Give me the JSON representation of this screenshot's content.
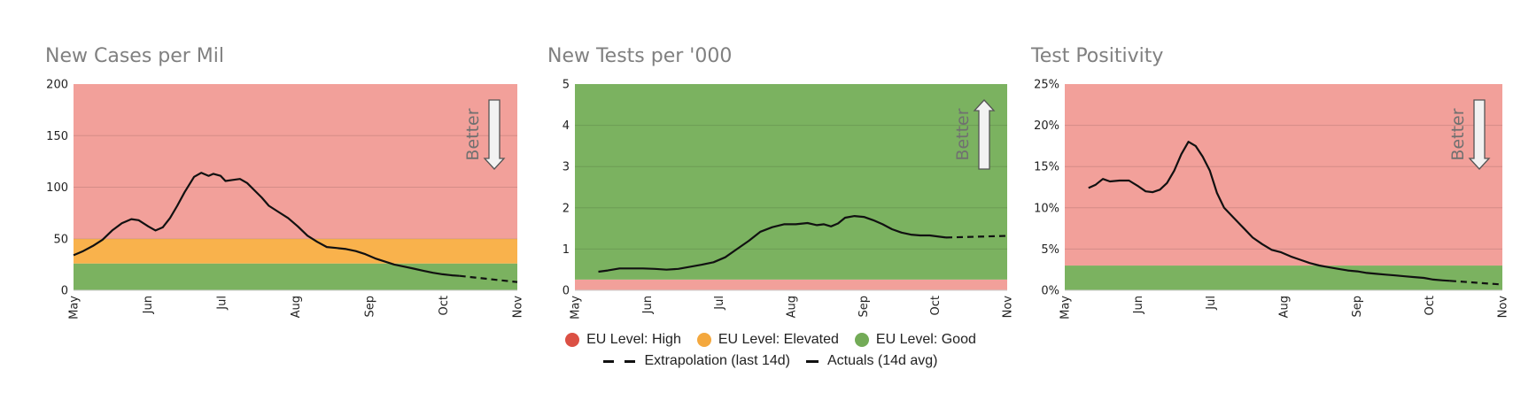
{
  "colors": {
    "high": "#f2a09a",
    "elevated": "#f9b24c",
    "good": "#7bb260",
    "line": "#111111",
    "legend_high": "#db5044",
    "legend_elevated": "#f4a83e",
    "legend_good": "#73ab57"
  },
  "legend": {
    "high": "EU Level: High",
    "elevated": "EU Level: Elevated",
    "good": "EU Level: Good",
    "extrapolation": "Extrapolation (last 14d)",
    "actuals": "Actuals (14d avg)"
  },
  "chart_data": [
    {
      "type": "line",
      "title": "New Cases per Mil",
      "better_label": "Better",
      "better_direction": "down",
      "x_ticks": [
        "May",
        "Jun",
        "Jul",
        "Aug",
        "Sep",
        "Oct",
        "Nov"
      ],
      "x_range": [
        "2020-05-01",
        "2020-11-01"
      ],
      "y_ticks": [
        "0",
        "50",
        "100",
        "150",
        "200"
      ],
      "ylim": [
        0,
        200
      ],
      "bands": [
        {
          "level": "good",
          "from": 0,
          "to": 26
        },
        {
          "level": "elevated",
          "from": 26,
          "to": 50
        },
        {
          "level": "high",
          "from": 50,
          "to": 200
        }
      ],
      "actuals": [
        [
          "2020-05-01",
          34
        ],
        [
          "2020-05-05",
          38
        ],
        [
          "2020-05-09",
          43
        ],
        [
          "2020-05-13",
          49
        ],
        [
          "2020-05-17",
          58
        ],
        [
          "2020-05-21",
          65
        ],
        [
          "2020-05-25",
          69
        ],
        [
          "2020-05-28",
          68
        ],
        [
          "2020-06-01",
          62
        ],
        [
          "2020-06-04",
          58
        ],
        [
          "2020-06-07",
          61
        ],
        [
          "2020-06-10",
          70
        ],
        [
          "2020-06-13",
          82
        ],
        [
          "2020-06-16",
          95
        ],
        [
          "2020-06-20",
          110
        ],
        [
          "2020-06-23",
          114
        ],
        [
          "2020-06-26",
          111
        ],
        [
          "2020-06-28",
          113
        ],
        [
          "2020-07-01",
          111
        ],
        [
          "2020-07-03",
          106
        ],
        [
          "2020-07-06",
          107
        ],
        [
          "2020-07-09",
          108
        ],
        [
          "2020-07-12",
          104
        ],
        [
          "2020-07-15",
          97
        ],
        [
          "2020-07-18",
          90
        ],
        [
          "2020-07-21",
          82
        ],
        [
          "2020-07-25",
          76
        ],
        [
          "2020-07-29",
          70
        ],
        [
          "2020-08-02",
          62
        ],
        [
          "2020-08-06",
          53
        ],
        [
          "2020-08-10",
          47
        ],
        [
          "2020-08-14",
          42
        ],
        [
          "2020-08-18",
          41
        ],
        [
          "2020-08-22",
          40
        ],
        [
          "2020-08-26",
          38
        ],
        [
          "2020-08-30",
          35
        ],
        [
          "2020-09-03",
          31
        ],
        [
          "2020-09-07",
          28
        ],
        [
          "2020-09-11",
          25
        ],
        [
          "2020-09-15",
          23
        ],
        [
          "2020-09-19",
          21
        ],
        [
          "2020-09-23",
          19
        ],
        [
          "2020-09-27",
          17
        ],
        [
          "2020-10-01",
          15.5
        ],
        [
          "2020-10-05",
          14.5
        ],
        [
          "2020-10-08",
          14
        ]
      ],
      "extrapolation": [
        [
          "2020-10-08",
          14
        ],
        [
          "2020-11-01",
          8
        ]
      ]
    },
    {
      "type": "line",
      "title": "New Tests per '000",
      "better_label": "Better",
      "better_direction": "up",
      "x_ticks": [
        "May",
        "Jun",
        "Jul",
        "Aug",
        "Sep",
        "Oct",
        "Nov"
      ],
      "x_range": [
        "2020-05-01",
        "2020-11-01"
      ],
      "y_ticks": [
        "0",
        "1",
        "2",
        "3",
        "4",
        "5"
      ],
      "ylim": [
        0,
        5
      ],
      "bands": [
        {
          "level": "high",
          "from": 0,
          "to": 0.26
        },
        {
          "level": "good",
          "from": 0.26,
          "to": 5
        }
      ],
      "actuals": [
        [
          "2020-05-11",
          0.45
        ],
        [
          "2020-05-15",
          0.48
        ],
        [
          "2020-05-20",
          0.53
        ],
        [
          "2020-05-25",
          0.53
        ],
        [
          "2020-05-30",
          0.53
        ],
        [
          "2020-06-04",
          0.52
        ],
        [
          "2020-06-09",
          0.5
        ],
        [
          "2020-06-14",
          0.52
        ],
        [
          "2020-06-19",
          0.57
        ],
        [
          "2020-06-24",
          0.62
        ],
        [
          "2020-06-29",
          0.68
        ],
        [
          "2020-07-04",
          0.8
        ],
        [
          "2020-07-09",
          1.0
        ],
        [
          "2020-07-14",
          1.2
        ],
        [
          "2020-07-19",
          1.42
        ],
        [
          "2020-07-24",
          1.53
        ],
        [
          "2020-07-29",
          1.6
        ],
        [
          "2020-08-03",
          1.6
        ],
        [
          "2020-08-08",
          1.63
        ],
        [
          "2020-08-12",
          1.58
        ],
        [
          "2020-08-15",
          1.6
        ],
        [
          "2020-08-18",
          1.55
        ],
        [
          "2020-08-21",
          1.62
        ],
        [
          "2020-08-24",
          1.76
        ],
        [
          "2020-08-28",
          1.8
        ],
        [
          "2020-09-01",
          1.78
        ],
        [
          "2020-09-05",
          1.7
        ],
        [
          "2020-09-09",
          1.6
        ],
        [
          "2020-09-13",
          1.48
        ],
        [
          "2020-09-17",
          1.4
        ],
        [
          "2020-09-21",
          1.35
        ],
        [
          "2020-09-25",
          1.33
        ],
        [
          "2020-09-29",
          1.33
        ],
        [
          "2020-10-03",
          1.3
        ],
        [
          "2020-10-06",
          1.28
        ]
      ],
      "extrapolation": [
        [
          "2020-10-06",
          1.28
        ],
        [
          "2020-11-01",
          1.32
        ]
      ]
    },
    {
      "type": "line",
      "title": "Test Positivity",
      "better_label": "Better",
      "better_direction": "down",
      "x_ticks": [
        "May",
        "Jun",
        "Jul",
        "Aug",
        "Sep",
        "Oct",
        "Nov"
      ],
      "x_range": [
        "2020-05-01",
        "2020-11-01"
      ],
      "y_ticks": [
        "0%",
        "5%",
        "10%",
        "15%",
        "20%",
        "25%"
      ],
      "ylim": [
        0,
        25
      ],
      "bands": [
        {
          "level": "good",
          "from": 0,
          "to": 3
        },
        {
          "level": "high",
          "from": 3,
          "to": 25
        }
      ],
      "actuals": [
        [
          "2020-05-11",
          12.4
        ],
        [
          "2020-05-14",
          12.8
        ],
        [
          "2020-05-17",
          13.5
        ],
        [
          "2020-05-20",
          13.2
        ],
        [
          "2020-05-24",
          13.3
        ],
        [
          "2020-05-28",
          13.3
        ],
        [
          "2020-06-01",
          12.6
        ],
        [
          "2020-06-04",
          12.0
        ],
        [
          "2020-06-07",
          11.9
        ],
        [
          "2020-06-10",
          12.2
        ],
        [
          "2020-06-13",
          13.0
        ],
        [
          "2020-06-16",
          14.5
        ],
        [
          "2020-06-19",
          16.5
        ],
        [
          "2020-06-22",
          18.0
        ],
        [
          "2020-06-25",
          17.5
        ],
        [
          "2020-06-28",
          16.2
        ],
        [
          "2020-07-01",
          14.5
        ],
        [
          "2020-07-04",
          11.8
        ],
        [
          "2020-07-07",
          10.0
        ],
        [
          "2020-07-11",
          8.8
        ],
        [
          "2020-07-15",
          7.6
        ],
        [
          "2020-07-19",
          6.4
        ],
        [
          "2020-07-23",
          5.6
        ],
        [
          "2020-07-27",
          4.9
        ],
        [
          "2020-07-31",
          4.6
        ],
        [
          "2020-08-04",
          4.1
        ],
        [
          "2020-08-08",
          3.7
        ],
        [
          "2020-08-12",
          3.3
        ],
        [
          "2020-08-16",
          3.0
        ],
        [
          "2020-08-20",
          2.8
        ],
        [
          "2020-08-24",
          2.6
        ],
        [
          "2020-08-28",
          2.4
        ],
        [
          "2020-09-01",
          2.3
        ],
        [
          "2020-09-05",
          2.1
        ],
        [
          "2020-09-09",
          2.0
        ],
        [
          "2020-09-13",
          1.9
        ],
        [
          "2020-09-17",
          1.8
        ],
        [
          "2020-09-21",
          1.7
        ],
        [
          "2020-09-25",
          1.6
        ],
        [
          "2020-09-29",
          1.5
        ],
        [
          "2020-10-03",
          1.3
        ],
        [
          "2020-10-07",
          1.2
        ],
        [
          "2020-10-10",
          1.15
        ]
      ],
      "extrapolation": [
        [
          "2020-10-10",
          1.15
        ],
        [
          "2020-11-01",
          0.7
        ]
      ]
    }
  ]
}
